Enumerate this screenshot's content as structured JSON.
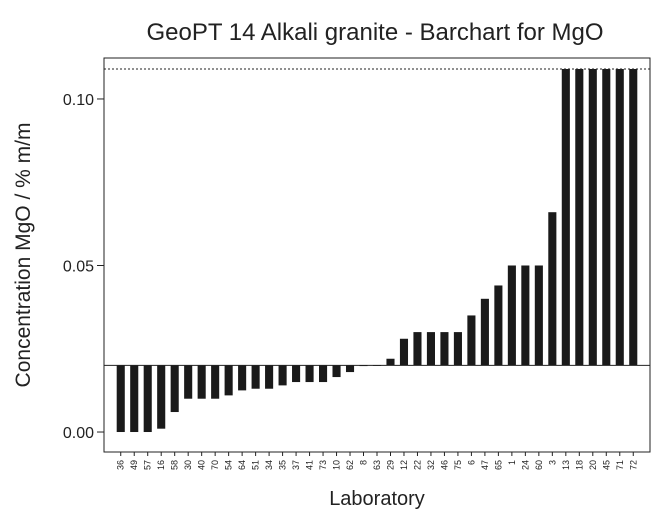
{
  "chart_data": {
    "type": "bar",
    "title": "GeoPT 14 Alkali granite - Barchart for MgO",
    "x_label": "Laboratory",
    "y_label": "Concentration MgO / % m/m",
    "categories": [
      "36",
      "49",
      "57",
      "16",
      "58",
      "30",
      "40",
      "70",
      "54",
      "64",
      "51",
      "34",
      "35",
      "37",
      "41",
      "73",
      "10",
      "62",
      "8",
      "63",
      "29",
      "12",
      "22",
      "32",
      "46",
      "75",
      "6",
      "47",
      "65",
      "1",
      "24",
      "60",
      "3",
      "13",
      "18",
      "20",
      "45",
      "71",
      "72"
    ],
    "values": [
      0.0,
      0.0,
      0.0,
      0.001,
      0.006,
      0.01,
      0.01,
      0.01,
      0.011,
      0.0125,
      0.013,
      0.013,
      0.014,
      0.015,
      0.015,
      0.015,
      0.0165,
      0.018,
      0.0198,
      0.0199,
      0.022,
      0.028,
      0.03,
      0.03,
      0.03,
      0.03,
      0.035,
      0.04,
      0.044,
      0.05,
      0.05,
      0.05,
      0.066,
      0.109,
      0.109,
      0.109,
      0.109,
      0.109,
      0.109
    ],
    "color": "#1a1a1a",
    "reference": 0.02,
    "upper_limit": 0.109,
    "ylim": [
      -0.006,
      0.1123
    ],
    "yticks": [
      {
        "value": 0,
        "label": "0.00"
      },
      {
        "value": 0.05,
        "label": "0.05"
      },
      {
        "value": 0.1,
        "label": "0.10"
      }
    ]
  }
}
